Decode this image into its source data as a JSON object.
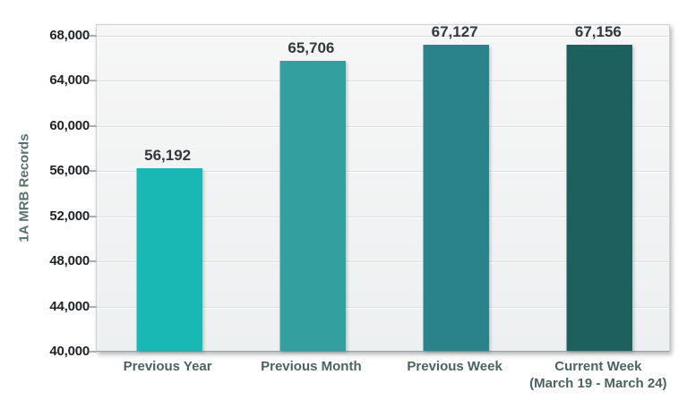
{
  "chart_data": {
    "type": "bar",
    "title": "",
    "ylabel": "1A MRB Records",
    "xlabel": "",
    "categories": [
      "Previous Year",
      "Previous Month",
      "Previous Week",
      "Current Week\n(March 19 - March 24)"
    ],
    "values": [
      56192,
      65706,
      67127,
      67156
    ],
    "data_labels": [
      "56,192",
      "65,706",
      "67,127",
      "67,156"
    ],
    "bar_colors": [
      "#1ab8b4",
      "#339f9e",
      "#2a828a",
      "#1e605e"
    ],
    "ylim": [
      40000,
      68000
    ],
    "ytick_step": 4000,
    "ytick_labels": [
      "40,000",
      "44,000",
      "48,000",
      "52,000",
      "56,000",
      "60,000",
      "64,000",
      "68,000"
    ],
    "grid": true,
    "legend": false,
    "colors": {
      "plot_background": "#f1f3f3",
      "gridline": "#dcdfdf",
      "axis_line": "#9aa0a3",
      "tick_label": "#1f2226",
      "data_label": "#33383d",
      "category_label": "#4a6360",
      "axis_title": "#56716f"
    }
  }
}
